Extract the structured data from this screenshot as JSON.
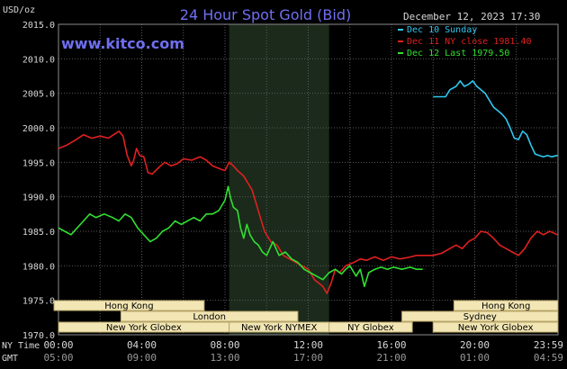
{
  "header": {
    "unit": "USD/oz",
    "title": "24 Hour Spot Gold (Bid)",
    "date": "December 12, 2023 17:30",
    "watermark": "www.kitco.com"
  },
  "axes": {
    "row_labels": [
      "NY Time",
      "GMT"
    ]
  },
  "colors": {
    "background": "#000000",
    "grid": "#5a5a5a",
    "frame": "#8c8c8c",
    "axis_text": "#d8d8d8",
    "title": "#6f6ff2",
    "shade": "#1b2a1b",
    "session_fill": "#f2e6b4",
    "session_border": "#b8a66a"
  },
  "chart_data": {
    "type": "line",
    "title": "24 Hour Spot Gold (Bid)",
    "ylabel": "USD/oz",
    "xlabel": "",
    "ylim": [
      1970,
      2015
    ],
    "xlim": [
      0,
      24
    ],
    "ny_ticks": [
      "00:00",
      "04:00",
      "08:00",
      "12:00",
      "16:00",
      "20:00",
      "23:59"
    ],
    "gmt_ticks": [
      "05:00",
      "09:00",
      "13:00",
      "17:00",
      "21:00",
      "01:00",
      "04:59"
    ],
    "y_ticks": [
      "1970.0",
      "1975.0",
      "1980.0",
      "1985.0",
      "1990.0",
      "1995.0",
      "2000.0",
      "2005.0",
      "2010.0",
      "2015.0"
    ],
    "grid": true,
    "legend_position": "top-right",
    "shaded_range": [
      8.2,
      13.0
    ],
    "series": [
      {
        "name": "Dec 10 Sunday",
        "legend": "Dec 10 Sunday",
        "color": "#30c8f0",
        "points": [
          [
            18.0,
            2004.5
          ],
          [
            18.6,
            2004.5
          ],
          [
            18.8,
            2005.5
          ],
          [
            19.1,
            2006.0
          ],
          [
            19.3,
            2006.8
          ],
          [
            19.5,
            2006.0
          ],
          [
            19.7,
            2006.3
          ],
          [
            19.9,
            2006.8
          ],
          [
            20.1,
            2006.0
          ],
          [
            20.3,
            2005.5
          ],
          [
            20.5,
            2005.0
          ],
          [
            20.7,
            2004.0
          ],
          [
            20.9,
            2003.0
          ],
          [
            21.1,
            2002.5
          ],
          [
            21.3,
            2002.0
          ],
          [
            21.5,
            2001.3
          ],
          [
            21.7,
            2000.0
          ],
          [
            21.9,
            1998.5
          ],
          [
            22.1,
            1998.3
          ],
          [
            22.3,
            1999.5
          ],
          [
            22.5,
            1999.0
          ],
          [
            22.7,
            1997.5
          ],
          [
            22.9,
            1996.2
          ],
          [
            23.1,
            1996.0
          ],
          [
            23.3,
            1995.8
          ],
          [
            23.5,
            1996.0
          ],
          [
            23.7,
            1995.8
          ],
          [
            23.98,
            1996.0
          ]
        ]
      },
      {
        "name": "Dec 11 NY close 1981.40",
        "legend": "Dec 11 NY close 1981.40",
        "color": "#e02020",
        "points": [
          [
            0.0,
            1997.0
          ],
          [
            0.4,
            1997.5
          ],
          [
            0.8,
            1998.2
          ],
          [
            1.2,
            1999.0
          ],
          [
            1.6,
            1998.5
          ],
          [
            2.0,
            1998.8
          ],
          [
            2.4,
            1998.5
          ],
          [
            2.9,
            1999.5
          ],
          [
            3.1,
            1998.8
          ],
          [
            3.3,
            1996.0
          ],
          [
            3.5,
            1994.5
          ],
          [
            3.6,
            1995.2
          ],
          [
            3.75,
            1997.0
          ],
          [
            3.9,
            1996.0
          ],
          [
            4.1,
            1995.8
          ],
          [
            4.3,
            1993.5
          ],
          [
            4.5,
            1993.3
          ],
          [
            4.8,
            1994.2
          ],
          [
            5.1,
            1995.0
          ],
          [
            5.4,
            1994.5
          ],
          [
            5.7,
            1994.8
          ],
          [
            6.0,
            1995.5
          ],
          [
            6.4,
            1995.3
          ],
          [
            6.8,
            1995.8
          ],
          [
            7.1,
            1995.3
          ],
          [
            7.4,
            1994.5
          ],
          [
            7.8,
            1994.0
          ],
          [
            8.0,
            1993.8
          ],
          [
            8.2,
            1995.0
          ],
          [
            8.4,
            1994.5
          ],
          [
            8.6,
            1993.8
          ],
          [
            8.9,
            1993.0
          ],
          [
            9.1,
            1992.0
          ],
          [
            9.3,
            1991.0
          ],
          [
            9.5,
            1989.0
          ],
          [
            9.7,
            1987.0
          ],
          [
            9.9,
            1985.0
          ],
          [
            10.2,
            1983.5
          ],
          [
            10.5,
            1983.0
          ],
          [
            10.8,
            1981.5
          ],
          [
            11.1,
            1981.0
          ],
          [
            11.4,
            1980.5
          ],
          [
            11.7,
            1980.0
          ],
          [
            12.0,
            1979.5
          ],
          [
            12.3,
            1978.0
          ],
          [
            12.5,
            1977.5
          ],
          [
            12.7,
            1977.0
          ],
          [
            12.9,
            1976.0
          ],
          [
            13.1,
            1977.5
          ],
          [
            13.3,
            1979.5
          ],
          [
            13.5,
            1979.0
          ],
          [
            13.8,
            1980.0
          ],
          [
            14.2,
            1980.5
          ],
          [
            14.5,
            1981.0
          ],
          [
            14.8,
            1980.8
          ],
          [
            15.2,
            1981.3
          ],
          [
            15.6,
            1980.8
          ],
          [
            16.0,
            1981.3
          ],
          [
            16.4,
            1981.0
          ],
          [
            16.8,
            1981.2
          ],
          [
            17.2,
            1981.5
          ],
          [
            17.6,
            1981.5
          ],
          [
            18.0,
            1981.5
          ],
          [
            18.4,
            1981.8
          ],
          [
            18.8,
            1982.5
          ],
          [
            19.1,
            1983.0
          ],
          [
            19.4,
            1982.5
          ],
          [
            19.7,
            1983.5
          ],
          [
            20.0,
            1984.0
          ],
          [
            20.3,
            1985.0
          ],
          [
            20.6,
            1984.8
          ],
          [
            20.9,
            1984.0
          ],
          [
            21.2,
            1983.0
          ],
          [
            21.5,
            1982.5
          ],
          [
            21.8,
            1982.0
          ],
          [
            22.1,
            1981.5
          ],
          [
            22.4,
            1982.5
          ],
          [
            22.7,
            1984.0
          ],
          [
            23.0,
            1985.0
          ],
          [
            23.3,
            1984.5
          ],
          [
            23.6,
            1985.0
          ],
          [
            23.98,
            1984.5
          ]
        ]
      },
      {
        "name": "Dec 12 Last 1979.50",
        "legend": "Dec 12 Last 1979.50",
        "color": "#30e030",
        "points": [
          [
            0.0,
            1985.5
          ],
          [
            0.3,
            1985.0
          ],
          [
            0.6,
            1984.5
          ],
          [
            0.9,
            1985.5
          ],
          [
            1.2,
            1986.5
          ],
          [
            1.5,
            1987.5
          ],
          [
            1.8,
            1987.0
          ],
          [
            2.2,
            1987.5
          ],
          [
            2.6,
            1987.0
          ],
          [
            2.9,
            1986.5
          ],
          [
            3.2,
            1987.5
          ],
          [
            3.5,
            1987.0
          ],
          [
            3.8,
            1985.5
          ],
          [
            4.1,
            1984.5
          ],
          [
            4.4,
            1983.5
          ],
          [
            4.7,
            1984.0
          ],
          [
            5.0,
            1985.0
          ],
          [
            5.3,
            1985.5
          ],
          [
            5.6,
            1986.5
          ],
          [
            5.9,
            1986.0
          ],
          [
            6.2,
            1986.5
          ],
          [
            6.5,
            1987.0
          ],
          [
            6.8,
            1986.5
          ],
          [
            7.1,
            1987.5
          ],
          [
            7.4,
            1987.5
          ],
          [
            7.7,
            1988.0
          ],
          [
            8.0,
            1989.5
          ],
          [
            8.15,
            1991.5
          ],
          [
            8.25,
            1990.0
          ],
          [
            8.4,
            1988.5
          ],
          [
            8.6,
            1988.0
          ],
          [
            8.75,
            1985.5
          ],
          [
            8.9,
            1984.0
          ],
          [
            9.05,
            1986.0
          ],
          [
            9.2,
            1984.5
          ],
          [
            9.4,
            1983.5
          ],
          [
            9.6,
            1983.0
          ],
          [
            9.8,
            1982.0
          ],
          [
            10.0,
            1981.5
          ],
          [
            10.3,
            1983.5
          ],
          [
            10.6,
            1981.5
          ],
          [
            10.9,
            1982.0
          ],
          [
            11.2,
            1981.0
          ],
          [
            11.5,
            1980.5
          ],
          [
            11.8,
            1979.5
          ],
          [
            12.1,
            1979.0
          ],
          [
            12.4,
            1978.5
          ],
          [
            12.7,
            1978.0
          ],
          [
            13.0,
            1979.0
          ],
          [
            13.3,
            1979.5
          ],
          [
            13.6,
            1978.8
          ],
          [
            13.8,
            1979.5
          ],
          [
            14.0,
            1980.0
          ],
          [
            14.3,
            1978.5
          ],
          [
            14.5,
            1979.5
          ],
          [
            14.7,
            1977.0
          ],
          [
            14.9,
            1979.0
          ],
          [
            15.2,
            1979.5
          ],
          [
            15.5,
            1979.8
          ],
          [
            15.8,
            1979.5
          ],
          [
            16.1,
            1979.8
          ],
          [
            16.5,
            1979.5
          ],
          [
            16.9,
            1979.8
          ],
          [
            17.2,
            1979.5
          ],
          [
            17.5,
            1979.5
          ]
        ]
      }
    ],
    "session_rows": [
      [
        {
          "label": "Hong Kong",
          "start": -0.5,
          "end": 7.0
        },
        {
          "label": "Hong Kong",
          "start": 19.0,
          "end": 24.0
        }
      ],
      [
        {
          "label": "London",
          "start": 3.0,
          "end": 11.5
        },
        {
          "label": "Sydney",
          "start": 16.5,
          "end": 24.0
        }
      ],
      [
        {
          "label": "New York Globex",
          "start": 0.0,
          "end": 8.2
        },
        {
          "label": "New York NYMEX",
          "start": 8.2,
          "end": 13.0
        },
        {
          "label": "NY Globex",
          "start": 13.0,
          "end": 17.0
        },
        {
          "label": "New York Globex",
          "start": 18.0,
          "end": 24.0
        }
      ]
    ]
  }
}
